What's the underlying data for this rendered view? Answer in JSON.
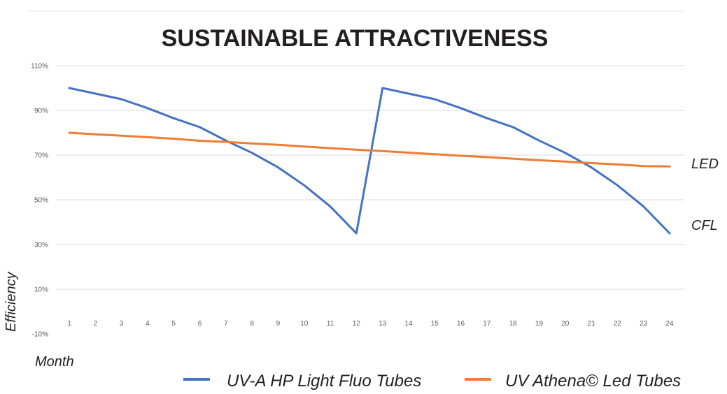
{
  "chart_data": {
    "type": "line",
    "title": "SUSTAINABLE ATTRACTIVENESS",
    "xlabel": "Month",
    "ylabel": "Efficiency",
    "x": [
      1,
      2,
      3,
      4,
      5,
      6,
      7,
      8,
      9,
      10,
      11,
      12,
      13,
      14,
      15,
      16,
      17,
      18,
      19,
      20,
      21,
      22,
      23,
      24
    ],
    "y_ticks": [
      "110%",
      "90%",
      "70%",
      "50%",
      "30%",
      "10%",
      "-10%"
    ],
    "ylim": [
      -10,
      110
    ],
    "series": [
      {
        "name": "UV-A HP Light Fluo Tubes",
        "color": "#4472c4",
        "end_label": "CFL",
        "values": [
          100,
          97.5,
          95,
          91,
          86.5,
          82.5,
          76.5,
          71,
          64.5,
          56.5,
          47,
          35,
          100,
          97.5,
          95,
          91,
          86.5,
          82.5,
          76.5,
          71,
          64.5,
          56.5,
          47,
          35
        ]
      },
      {
        "name": "UV Athena© Led Tubes",
        "color": "#ed7d31",
        "end_label": "LED",
        "values": [
          80,
          79.3,
          78.7,
          78,
          77.3,
          76.4,
          75.9,
          75.2,
          74.6,
          73.8,
          73.1,
          72.4,
          71.8,
          71.1,
          70.4,
          69.7,
          69.1,
          68.4,
          67.7,
          67.1,
          66.4,
          65.8,
          65.1,
          64.9
        ]
      }
    ],
    "legend_position": "bottom"
  }
}
